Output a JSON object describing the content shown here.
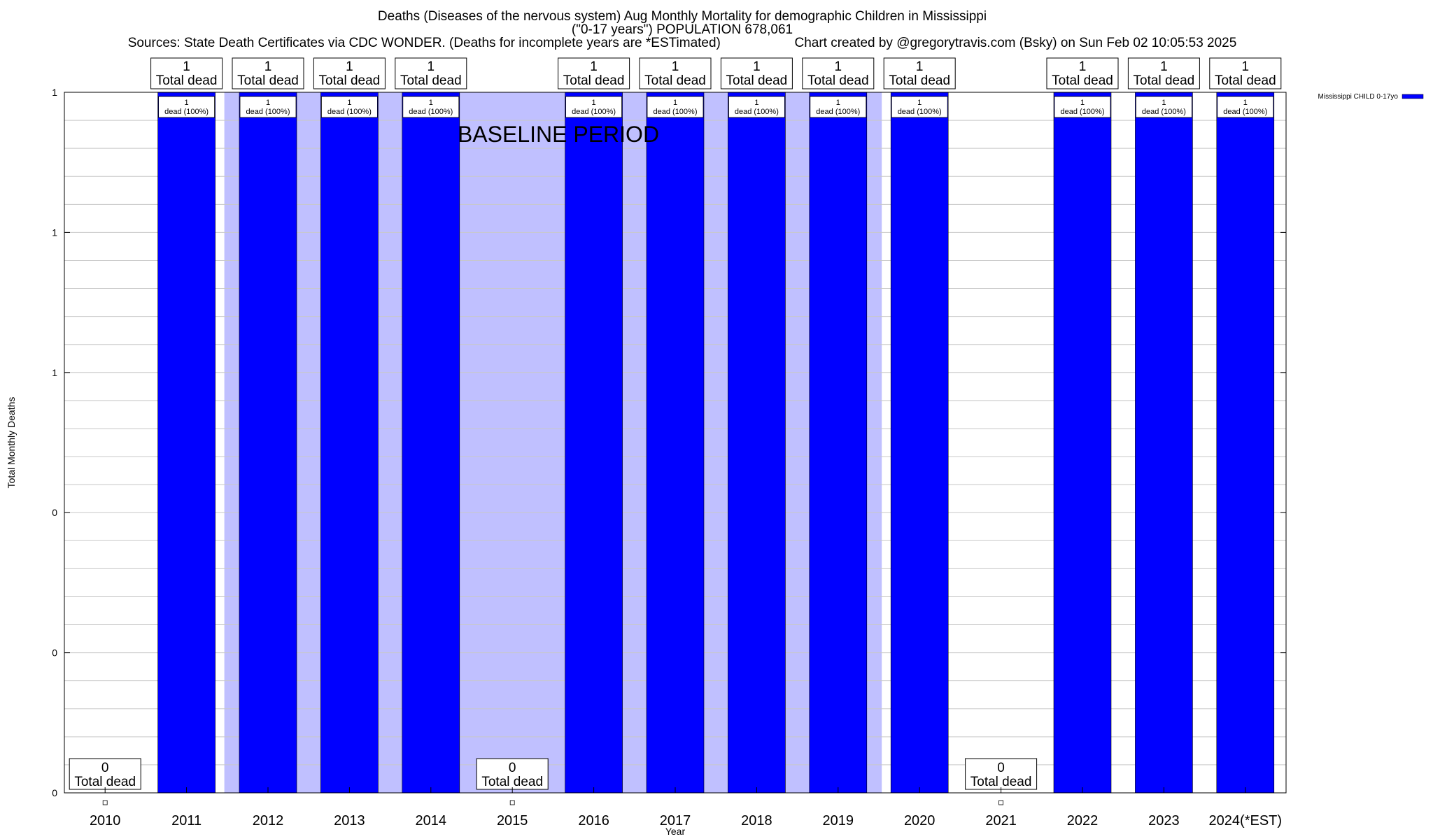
{
  "chart_data": {
    "type": "bar",
    "title_lines": [
      "Deaths (Diseases of the nervous system) Aug Monthly Mortality for demographic Children in Mississippi",
      "(\"0-17 years\") POPULATION 678,061"
    ],
    "sources_line": "Sources: State Death Certificates via CDC WONDER. (Deaths for incomplete years are *ESTimated)",
    "credit_line": "Chart created by @gregorytravis.com (Bsky) on Sun Feb 02 10:05:53 2025",
    "xlabel": "Year",
    "ylabel": "Total Monthly Deaths",
    "ylim": [
      0,
      1
    ],
    "y_tick_labels": [
      "0",
      "0",
      "0",
      "1",
      "1",
      "1"
    ],
    "categories": [
      "2010",
      "2011",
      "2012",
      "2013",
      "2014",
      "2015",
      "2016",
      "2017",
      "2018",
      "2019",
      "2020",
      "2021",
      "2022",
      "2023",
      "2024(*EST)"
    ],
    "series": [
      {
        "name": "Mississippi CHILD 0-17yo",
        "color": "#0000ff",
        "values": [
          0,
          1,
          1,
          1,
          1,
          0,
          1,
          1,
          1,
          1,
          1,
          0,
          1,
          1,
          1
        ]
      }
    ],
    "total_label_text": "Total dead",
    "bar_label_suffix": "dead (100%)",
    "baseline_label": "BASELINE PERIOD",
    "baseline_range": [
      "2011",
      "2020"
    ],
    "baseline_color": "#c0c0ff",
    "grid": true,
    "legend_position": "top-right"
  }
}
